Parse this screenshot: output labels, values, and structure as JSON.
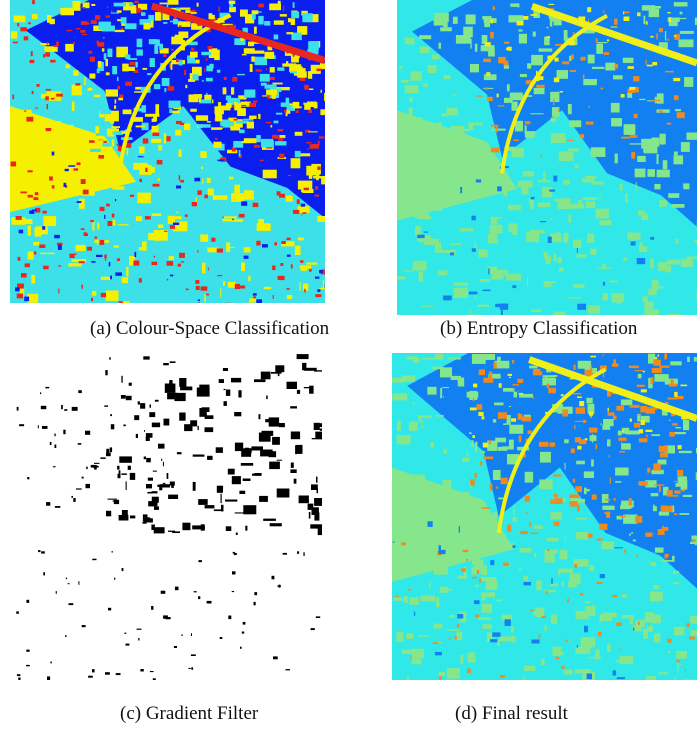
{
  "figure": {
    "panels": [
      {
        "caption": "(a) Colour-Space Classification"
      },
      {
        "caption": "(b) Entropy Classification"
      },
      {
        "caption": "(c) Gradient Filter"
      },
      {
        "caption": "(d) Final result"
      }
    ]
  }
}
